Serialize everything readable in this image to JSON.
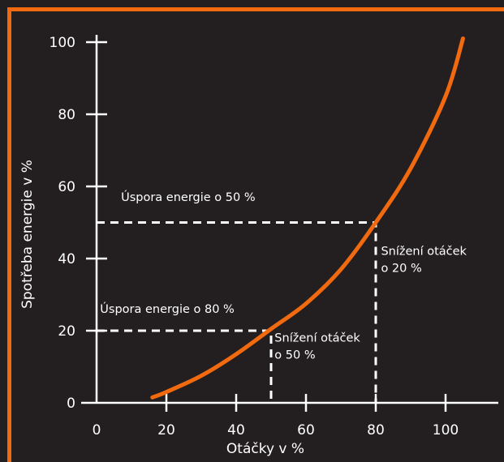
{
  "colors": {
    "background": "#231f20",
    "frame": "#f26a10",
    "curve": "#f26a10",
    "axes": "#ffffff",
    "guides": "#ffffff"
  },
  "chart_data": {
    "type": "line",
    "title": "",
    "xlabel": "Otáčky v %",
    "ylabel": "Spotřeba energie v  %",
    "xlim": [
      0,
      110
    ],
    "ylim": [
      0,
      100
    ],
    "x_ticks": [
      0,
      20,
      40,
      60,
      80,
      100
    ],
    "y_ticks": [
      0,
      20,
      40,
      60,
      80,
      100
    ],
    "grid": false,
    "series": [
      {
        "color": "#f26a10",
        "x": [
          16,
          20,
          30,
          40,
          50,
          60,
          70,
          80,
          90,
          100,
          105
        ],
        "y": [
          1.5,
          3,
          7.5,
          13.5,
          20.5,
          27.5,
          37,
          50,
          65,
          85,
          101
        ]
      }
    ],
    "guides": [
      {
        "from": [
          0,
          50
        ],
        "corner": [
          80,
          50
        ],
        "to": [
          80,
          0
        ]
      },
      {
        "from": [
          0,
          20
        ],
        "corner": [
          50,
          20
        ],
        "to": [
          50,
          0
        ]
      }
    ],
    "annotations": [
      {
        "id": "savings50",
        "text": "Úspora energie o 50 %",
        "x": 7,
        "y": 56
      },
      {
        "id": "savings80",
        "text": "Úspora energie o 80 %",
        "x": 1,
        "y": 25
      },
      {
        "id": "speed20",
        "lines": [
          "Snížení otáček",
          "o 20 %"
        ],
        "x": 81.5,
        "y": 41
      },
      {
        "id": "speed50",
        "lines": [
          "Snížení otáček",
          "o 50 %"
        ],
        "x": 51,
        "y": 17
      }
    ]
  }
}
